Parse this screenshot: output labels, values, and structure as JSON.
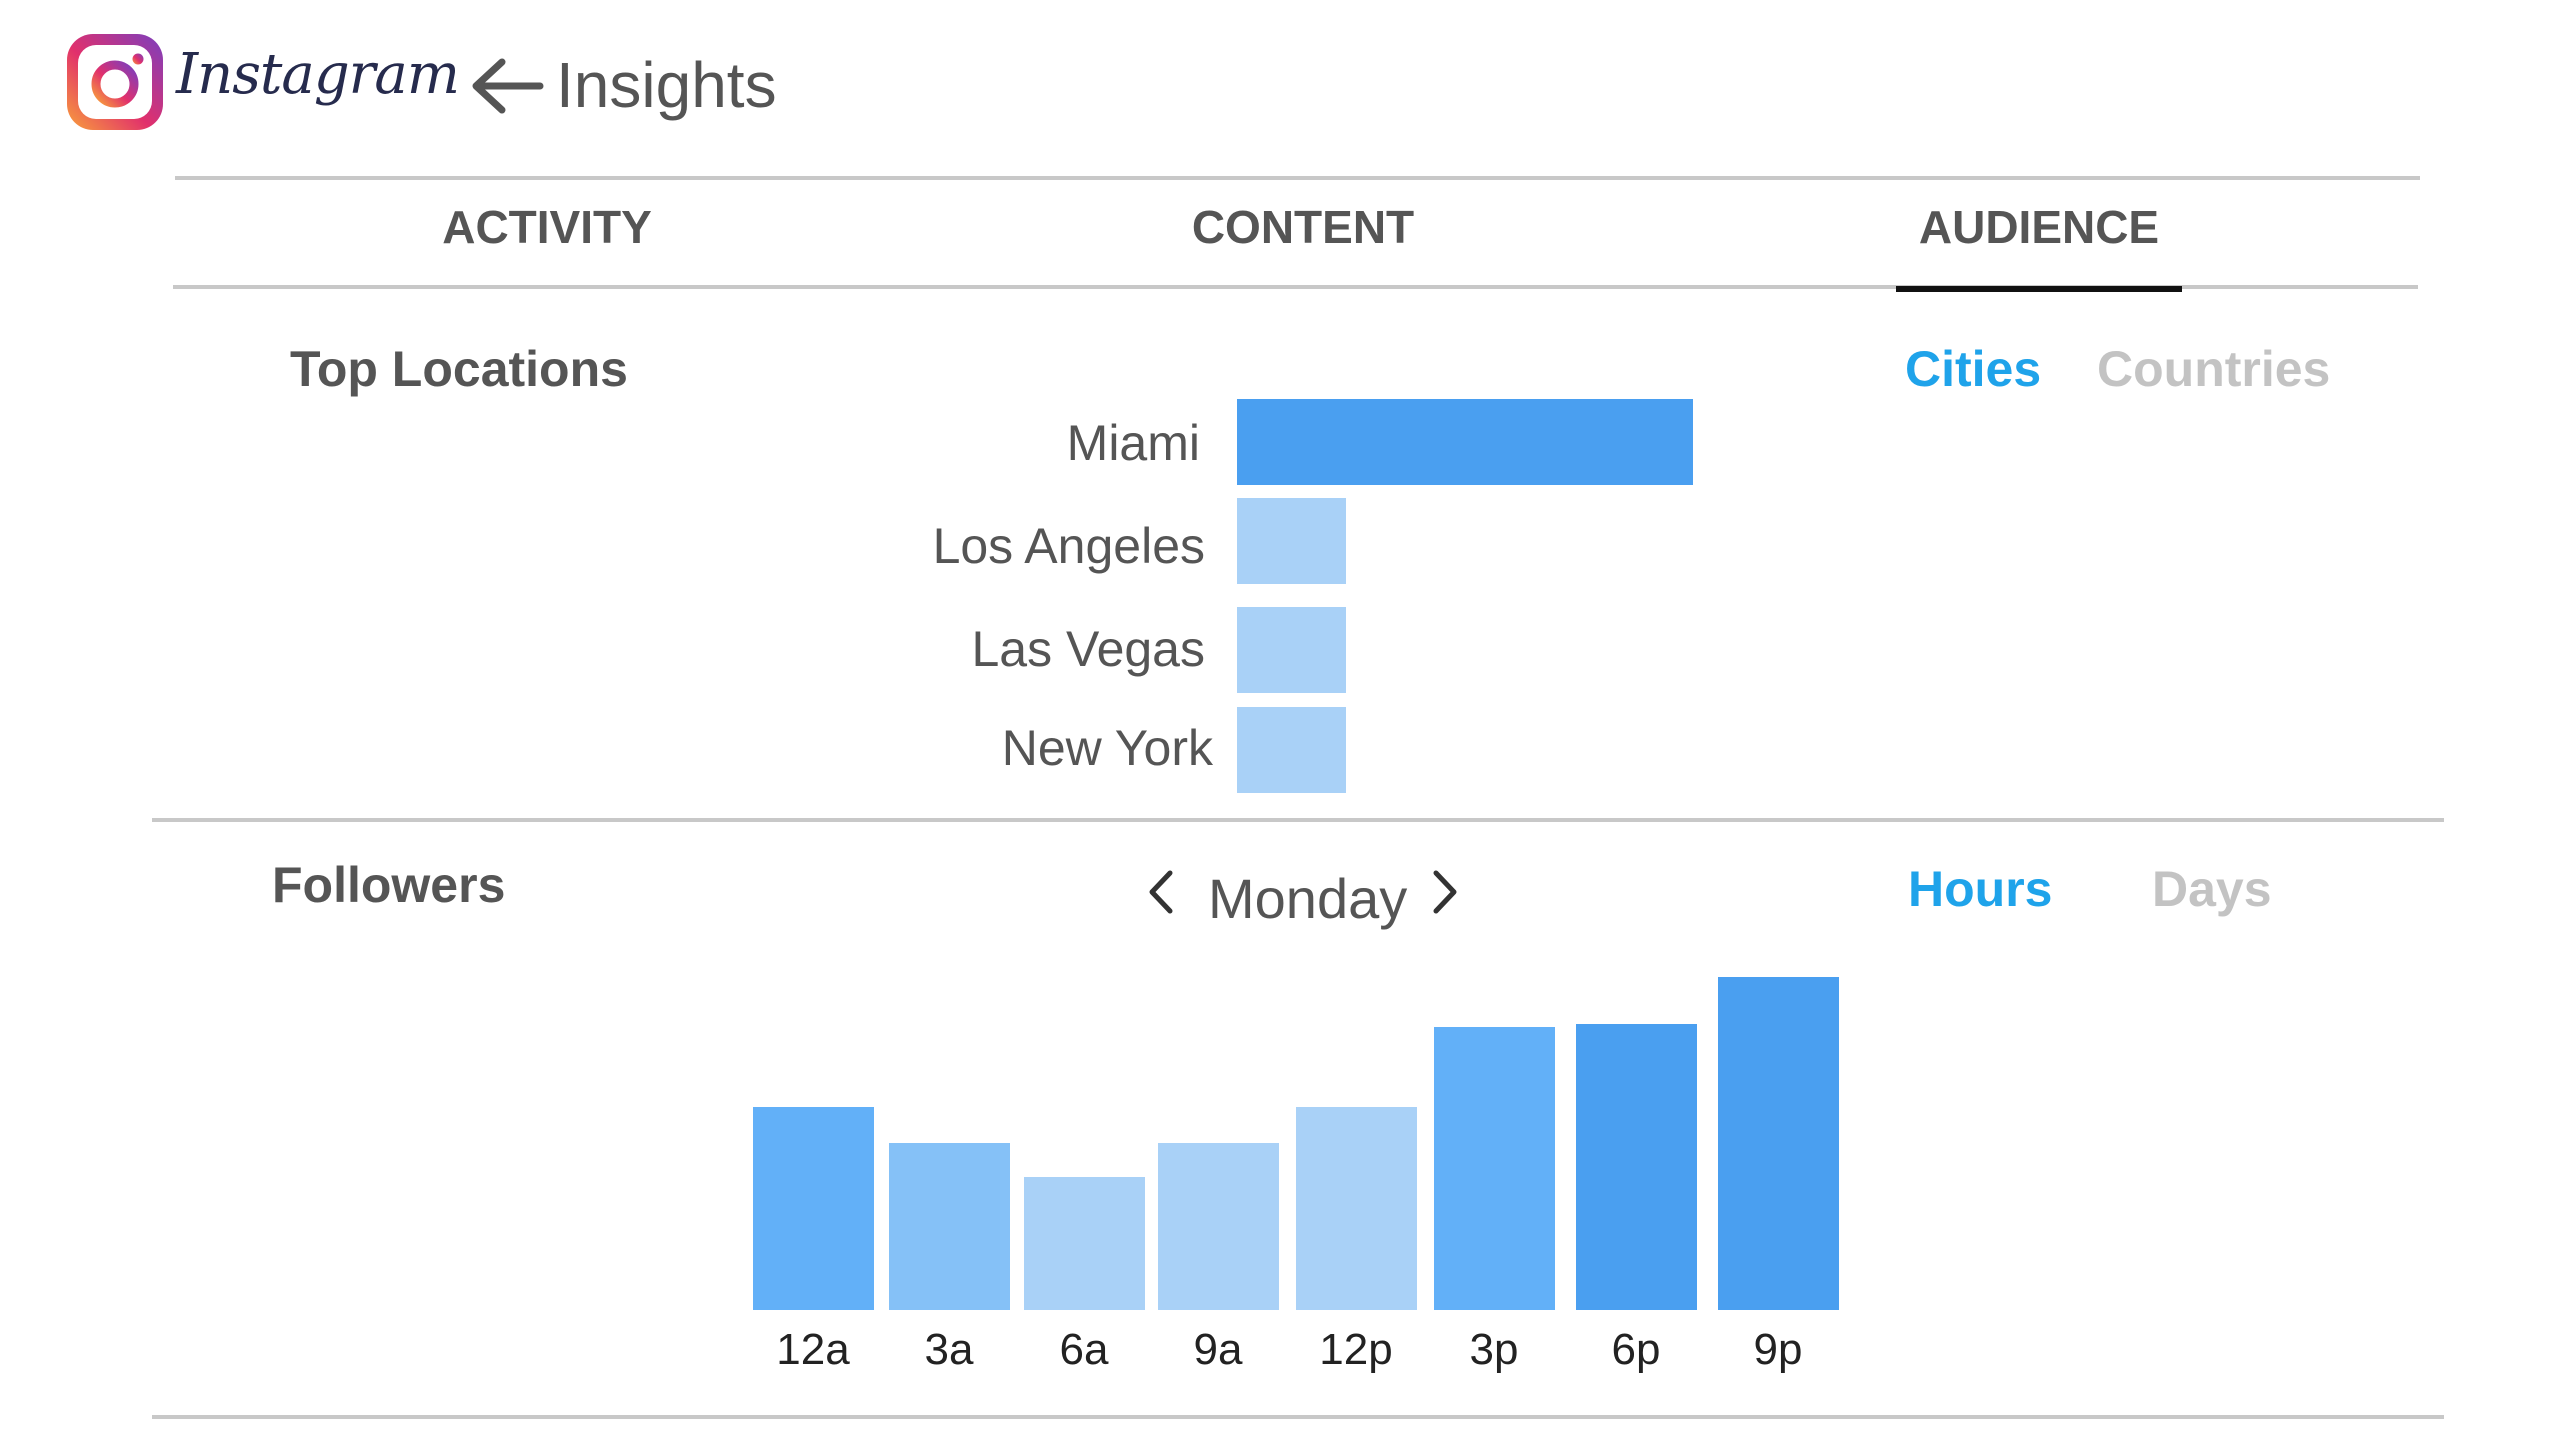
{
  "header": {
    "brand": "Instagram",
    "title": "Insights"
  },
  "tabs": [
    {
      "label": "ACTIVITY",
      "active": false
    },
    {
      "label": "CONTENT",
      "active": false
    },
    {
      "label": "AUDIENCE",
      "active": true
    }
  ],
  "top_locations": {
    "title": "Top Locations",
    "toggle": {
      "active": "Cities",
      "inactive": "Countries"
    },
    "cities": [
      {
        "name": "Miami",
        "share": 1.0
      },
      {
        "name": "Los Angeles",
        "share": 0.24
      },
      {
        "name": "Las Vegas",
        "share": 0.24
      },
      {
        "name": "New York",
        "share": 0.24
      }
    ]
  },
  "followers": {
    "title": "Followers",
    "day": "Monday",
    "toggle": {
      "active": "Hours",
      "inactive": "Days"
    }
  },
  "colors": {
    "accent": "#1fa3ea",
    "bar_dark": "#4a9ff0",
    "bar_mid": "#62b0f8",
    "bar_light": "#a9d1f7",
    "bar_lighter": "#85c1f7"
  },
  "chart_data": {
    "type": "bar",
    "categories": [
      "12a",
      "3a",
      "6a",
      "9a",
      "12p",
      "3p",
      "6p",
      "9p"
    ],
    "values": [
      61,
      50,
      40,
      50,
      61,
      85,
      86,
      100
    ],
    "ylim": [
      0,
      100
    ]
  }
}
